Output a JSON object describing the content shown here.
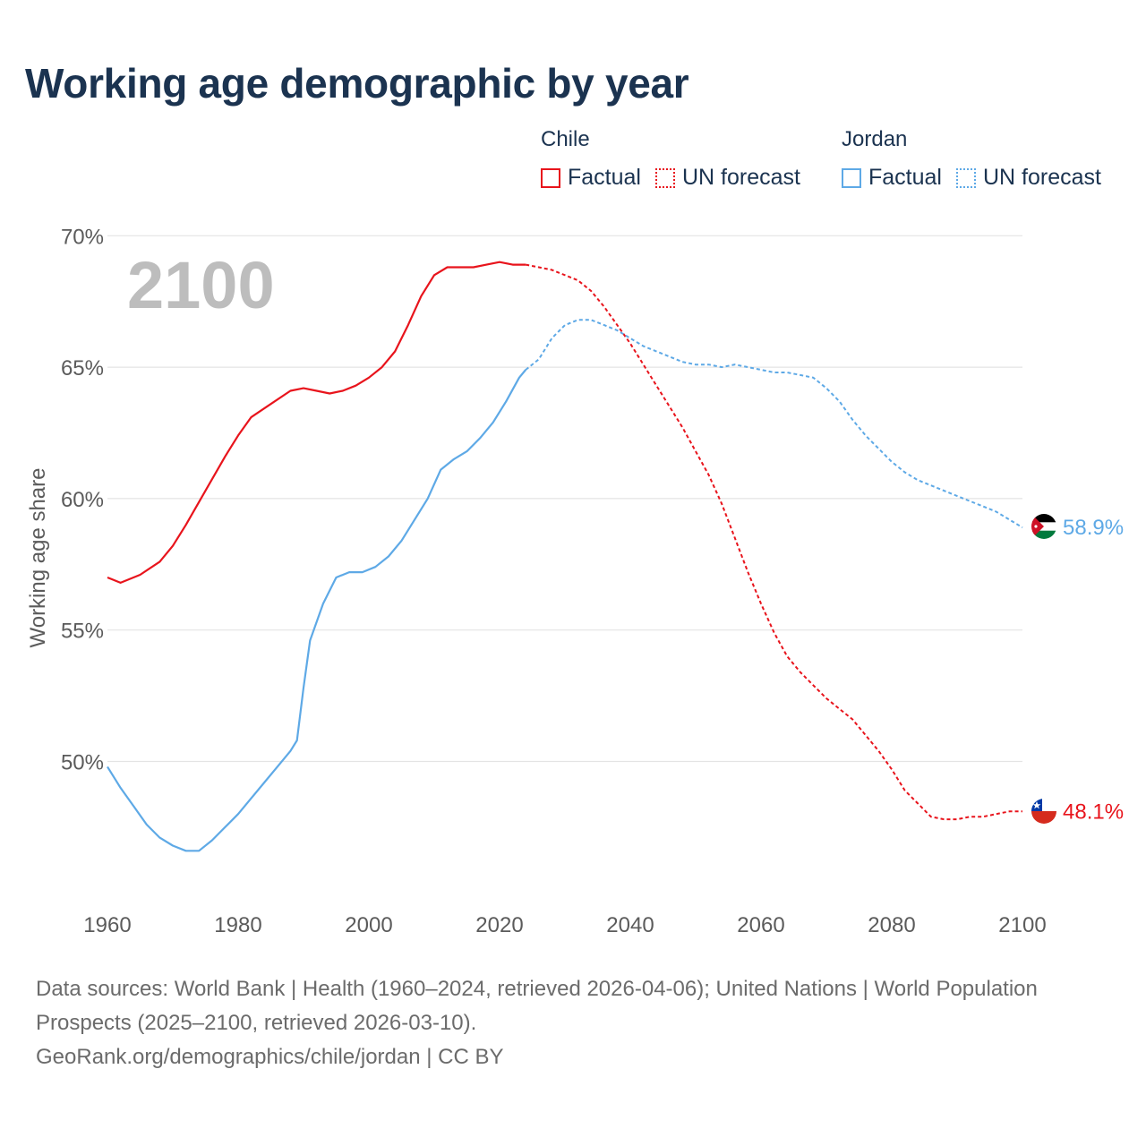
{
  "title": "Working age demographic by year",
  "legend": {
    "groups": [
      {
        "country": "Chile",
        "factual_label": "Factual",
        "forecast_label": "UN forecast",
        "color": "#e8141c"
      },
      {
        "country": "Jordan",
        "factual_label": "Factual",
        "forecast_label": "UN forecast",
        "color": "#5ea9e6"
      }
    ]
  },
  "source": {
    "line1": "Data sources: World Bank | Health (1960–2024, retrieved 2026-04-06); United Nations | World Population Prospects (2025–2100, retrieved 2026-03-10).",
    "line2": "GeoRank.org/demographics/chile/jordan | CC BY"
  },
  "chart_data": {
    "type": "line",
    "title": "Working age demographic by year",
    "ylabel": "Working age share",
    "xlabel": "",
    "year_overlay": "2100",
    "xlim": [
      1960,
      2100
    ],
    "ylim": [
      45,
      70
    ],
    "x_ticks": [
      1960,
      1980,
      2000,
      2020,
      2040,
      2060,
      2080,
      2100
    ],
    "y_ticks": [
      50,
      55,
      60,
      65,
      70
    ],
    "y_tick_labels": [
      "50%",
      "55%",
      "60%",
      "65%",
      "70%"
    ],
    "grid": true,
    "forecast_start_year": 2024,
    "series": [
      {
        "name": "Chile",
        "color": "#e8141c",
        "end_label": "48.1%",
        "flag": "chile-flag",
        "points": [
          [
            1960,
            57.0
          ],
          [
            1962,
            56.8
          ],
          [
            1965,
            57.1
          ],
          [
            1968,
            57.6
          ],
          [
            1970,
            58.2
          ],
          [
            1972,
            59.0
          ],
          [
            1975,
            60.3
          ],
          [
            1978,
            61.6
          ],
          [
            1980,
            62.4
          ],
          [
            1982,
            63.1
          ],
          [
            1985,
            63.6
          ],
          [
            1988,
            64.1
          ],
          [
            1990,
            64.2
          ],
          [
            1992,
            64.1
          ],
          [
            1994,
            64.0
          ],
          [
            1996,
            64.1
          ],
          [
            1998,
            64.3
          ],
          [
            2000,
            64.6
          ],
          [
            2002,
            65.0
          ],
          [
            2004,
            65.6
          ],
          [
            2006,
            66.6
          ],
          [
            2008,
            67.7
          ],
          [
            2010,
            68.5
          ],
          [
            2012,
            68.8
          ],
          [
            2014,
            68.8
          ],
          [
            2016,
            68.8
          ],
          [
            2018,
            68.9
          ],
          [
            2020,
            69.0
          ],
          [
            2022,
            68.9
          ],
          [
            2024,
            68.9
          ],
          [
            2026,
            68.8
          ],
          [
            2028,
            68.7
          ],
          [
            2030,
            68.5
          ],
          [
            2032,
            68.3
          ],
          [
            2034,
            67.9
          ],
          [
            2036,
            67.3
          ],
          [
            2038,
            66.6
          ],
          [
            2040,
            65.9
          ],
          [
            2042,
            65.1
          ],
          [
            2044,
            64.3
          ],
          [
            2046,
            63.5
          ],
          [
            2048,
            62.7
          ],
          [
            2050,
            61.8
          ],
          [
            2052,
            60.9
          ],
          [
            2054,
            59.8
          ],
          [
            2056,
            58.5
          ],
          [
            2058,
            57.2
          ],
          [
            2060,
            56.0
          ],
          [
            2062,
            54.9
          ],
          [
            2064,
            54.0
          ],
          [
            2066,
            53.4
          ],
          [
            2068,
            52.9
          ],
          [
            2070,
            52.4
          ],
          [
            2072,
            52.0
          ],
          [
            2074,
            51.6
          ],
          [
            2076,
            51.0
          ],
          [
            2078,
            50.4
          ],
          [
            2080,
            49.7
          ],
          [
            2082,
            48.9
          ],
          [
            2084,
            48.4
          ],
          [
            2086,
            47.9
          ],
          [
            2088,
            47.8
          ],
          [
            2090,
            47.8
          ],
          [
            2092,
            47.9
          ],
          [
            2094,
            47.9
          ],
          [
            2096,
            48.0
          ],
          [
            2098,
            48.1
          ],
          [
            2100,
            48.1
          ]
        ]
      },
      {
        "name": "Jordan",
        "color": "#5ea9e6",
        "end_label": "58.9%",
        "flag": "jordan-flag",
        "points": [
          [
            1960,
            49.8
          ],
          [
            1962,
            49.0
          ],
          [
            1964,
            48.3
          ],
          [
            1966,
            47.6
          ],
          [
            1968,
            47.1
          ],
          [
            1970,
            46.8
          ],
          [
            1972,
            46.6
          ],
          [
            1974,
            46.6
          ],
          [
            1976,
            47.0
          ],
          [
            1978,
            47.5
          ],
          [
            1980,
            48.0
          ],
          [
            1982,
            48.6
          ],
          [
            1984,
            49.2
          ],
          [
            1986,
            49.8
          ],
          [
            1988,
            50.4
          ],
          [
            1989,
            50.8
          ],
          [
            1990,
            52.8
          ],
          [
            1991,
            54.6
          ],
          [
            1993,
            56.0
          ],
          [
            1995,
            57.0
          ],
          [
            1997,
            57.2
          ],
          [
            1999,
            57.2
          ],
          [
            2001,
            57.4
          ],
          [
            2003,
            57.8
          ],
          [
            2005,
            58.4
          ],
          [
            2007,
            59.2
          ],
          [
            2009,
            60.0
          ],
          [
            2011,
            61.1
          ],
          [
            2013,
            61.5
          ],
          [
            2015,
            61.8
          ],
          [
            2017,
            62.3
          ],
          [
            2019,
            62.9
          ],
          [
            2021,
            63.7
          ],
          [
            2023,
            64.6
          ],
          [
            2024,
            64.9
          ],
          [
            2026,
            65.3
          ],
          [
            2028,
            66.1
          ],
          [
            2030,
            66.6
          ],
          [
            2032,
            66.8
          ],
          [
            2034,
            66.8
          ],
          [
            2036,
            66.6
          ],
          [
            2038,
            66.4
          ],
          [
            2040,
            66.1
          ],
          [
            2042,
            65.8
          ],
          [
            2044,
            65.6
          ],
          [
            2046,
            65.4
          ],
          [
            2048,
            65.2
          ],
          [
            2050,
            65.1
          ],
          [
            2052,
            65.1
          ],
          [
            2054,
            65.0
          ],
          [
            2056,
            65.1
          ],
          [
            2058,
            65.0
          ],
          [
            2060,
            64.9
          ],
          [
            2062,
            64.8
          ],
          [
            2064,
            64.8
          ],
          [
            2066,
            64.7
          ],
          [
            2068,
            64.6
          ],
          [
            2070,
            64.2
          ],
          [
            2072,
            63.7
          ],
          [
            2074,
            63.0
          ],
          [
            2076,
            62.4
          ],
          [
            2078,
            61.9
          ],
          [
            2080,
            61.4
          ],
          [
            2082,
            61.0
          ],
          [
            2084,
            60.7
          ],
          [
            2086,
            60.5
          ],
          [
            2088,
            60.3
          ],
          [
            2090,
            60.1
          ],
          [
            2092,
            59.9
          ],
          [
            2094,
            59.7
          ],
          [
            2096,
            59.5
          ],
          [
            2098,
            59.2
          ],
          [
            2100,
            58.9
          ]
        ]
      }
    ]
  },
  "ui": {
    "grid_color": "#e4e4e4",
    "text_color": "#5b5b5b",
    "overlay_color": "#bdbdbd"
  }
}
